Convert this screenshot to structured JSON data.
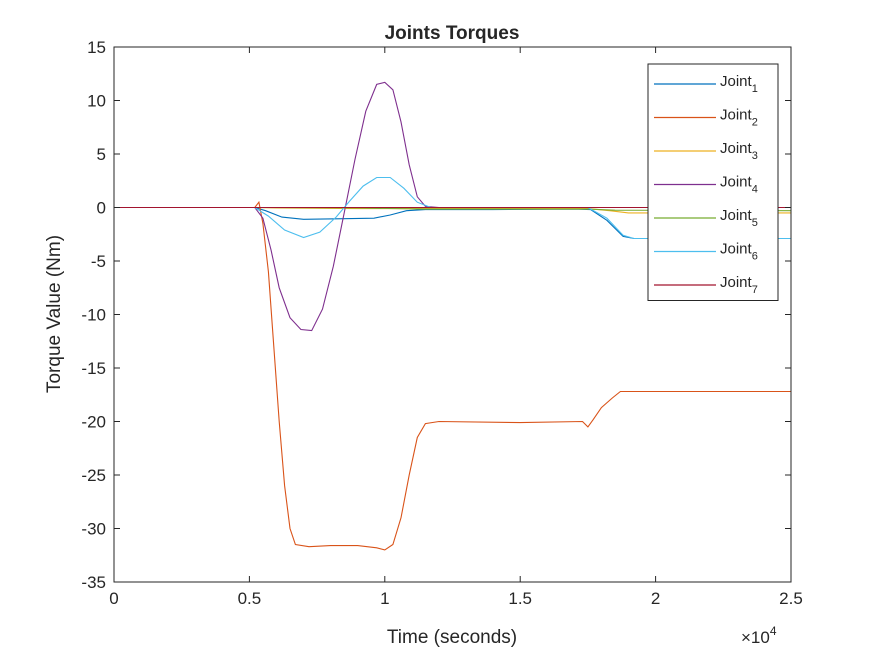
{
  "chart_data": {
    "type": "line",
    "title": "Joints Torques",
    "xlabel": "Time (seconds)",
    "ylabel": "Torque Value (Nm)",
    "x_exponent_label": "×10",
    "x_exponent_power": "4",
    "xlim": [
      0,
      25000
    ],
    "ylim": [
      -35,
      15
    ],
    "x_ticks": [
      0,
      5000,
      10000,
      15000,
      20000,
      25000
    ],
    "x_tick_labels": [
      "0",
      "0.5",
      "1",
      "1.5",
      "2",
      "2.5"
    ],
    "y_ticks": [
      -35,
      -30,
      -25,
      -20,
      -15,
      -10,
      -5,
      0,
      5,
      10,
      15
    ],
    "y_tick_labels": [
      "-35",
      "-30",
      "-25",
      "-20",
      "-15",
      "-10",
      "-5",
      "0",
      "5",
      "10",
      "15"
    ],
    "grid": false,
    "legend_position": "top-right",
    "series": [
      {
        "name": "Joint",
        "subscript": "1",
        "color": "#0072BD",
        "points": [
          [
            0,
            0
          ],
          [
            5200,
            0
          ],
          [
            5600,
            -0.3
          ],
          [
            6200,
            -0.9
          ],
          [
            7000,
            -1.1
          ],
          [
            8500,
            -1.05
          ],
          [
            9600,
            -1.0
          ],
          [
            10200,
            -0.7
          ],
          [
            10800,
            -0.3
          ],
          [
            11500,
            -0.2
          ],
          [
            14000,
            -0.2
          ],
          [
            17000,
            -0.15
          ],
          [
            17600,
            -0.2
          ],
          [
            18200,
            -1.2
          ],
          [
            18800,
            -2.7
          ],
          [
            19200,
            -2.9
          ],
          [
            25000,
            -2.9
          ]
        ]
      },
      {
        "name": "Joint",
        "subscript": "2",
        "color": "#D95319",
        "points": [
          [
            0,
            0
          ],
          [
            5200,
            0
          ],
          [
            5350,
            0.5
          ],
          [
            5500,
            -1.5
          ],
          [
            5700,
            -6
          ],
          [
            5900,
            -13
          ],
          [
            6100,
            -20
          ],
          [
            6300,
            -26
          ],
          [
            6500,
            -30
          ],
          [
            6700,
            -31.5
          ],
          [
            7200,
            -31.7
          ],
          [
            8000,
            -31.6
          ],
          [
            9000,
            -31.6
          ],
          [
            9700,
            -31.8
          ],
          [
            10000,
            -32
          ],
          [
            10300,
            -31.5
          ],
          [
            10600,
            -29
          ],
          [
            10900,
            -25
          ],
          [
            11200,
            -21.5
          ],
          [
            11500,
            -20.2
          ],
          [
            12000,
            -20
          ],
          [
            15000,
            -20.1
          ],
          [
            17300,
            -20
          ],
          [
            17500,
            -20.5
          ],
          [
            17700,
            -19.8
          ],
          [
            18000,
            -18.7
          ],
          [
            18400,
            -17.8
          ],
          [
            18700,
            -17.2
          ],
          [
            19000,
            -17.2
          ],
          [
            25000,
            -17.2
          ]
        ]
      },
      {
        "name": "Joint",
        "subscript": "3",
        "color": "#EDB120",
        "points": [
          [
            0,
            0
          ],
          [
            5200,
            0
          ],
          [
            6000,
            -0.05
          ],
          [
            9000,
            -0.1
          ],
          [
            11000,
            -0.1
          ],
          [
            17500,
            -0.1
          ],
          [
            18300,
            -0.3
          ],
          [
            19000,
            -0.5
          ],
          [
            25000,
            -0.5
          ]
        ]
      },
      {
        "name": "Joint",
        "subscript": "4",
        "color": "#7E2F8E",
        "points": [
          [
            0,
            0
          ],
          [
            5200,
            0
          ],
          [
            5500,
            -1
          ],
          [
            5800,
            -4
          ],
          [
            6100,
            -7.5
          ],
          [
            6500,
            -10.3
          ],
          [
            6900,
            -11.4
          ],
          [
            7300,
            -11.5
          ],
          [
            7700,
            -9.5
          ],
          [
            8100,
            -5.5
          ],
          [
            8500,
            -0.5
          ],
          [
            8900,
            4.5
          ],
          [
            9300,
            9
          ],
          [
            9700,
            11.5
          ],
          [
            10000,
            11.7
          ],
          [
            10300,
            11
          ],
          [
            10600,
            8
          ],
          [
            10900,
            4
          ],
          [
            11200,
            1
          ],
          [
            11500,
            0.1
          ],
          [
            12000,
            0
          ],
          [
            17500,
            0
          ],
          [
            25000,
            0
          ]
        ]
      },
      {
        "name": "Joint",
        "subscript": "5",
        "color": "#77AC30",
        "points": [
          [
            0,
            0
          ],
          [
            5200,
            0
          ],
          [
            9000,
            -0.05
          ],
          [
            11500,
            -0.15
          ],
          [
            17500,
            -0.15
          ],
          [
            18500,
            -0.25
          ],
          [
            25000,
            -0.3
          ]
        ]
      },
      {
        "name": "Joint",
        "subscript": "6",
        "color": "#4DBEEE",
        "points": [
          [
            0,
            0
          ],
          [
            5200,
            0
          ],
          [
            5700,
            -0.8
          ],
          [
            6300,
            -2.1
          ],
          [
            7000,
            -2.8
          ],
          [
            7600,
            -2.3
          ],
          [
            8200,
            -0.9
          ],
          [
            8700,
            0.6
          ],
          [
            9200,
            2
          ],
          [
            9700,
            2.8
          ],
          [
            10200,
            2.8
          ],
          [
            10700,
            1.8
          ],
          [
            11200,
            0.5
          ],
          [
            11700,
            0
          ],
          [
            17500,
            0
          ],
          [
            18200,
            -1
          ],
          [
            18800,
            -2.6
          ],
          [
            19200,
            -2.9
          ],
          [
            25000,
            -2.9
          ]
        ]
      },
      {
        "name": "Joint",
        "subscript": "7",
        "color": "#A2142F",
        "points": [
          [
            0,
            0
          ],
          [
            25000,
            0
          ]
        ]
      }
    ]
  }
}
